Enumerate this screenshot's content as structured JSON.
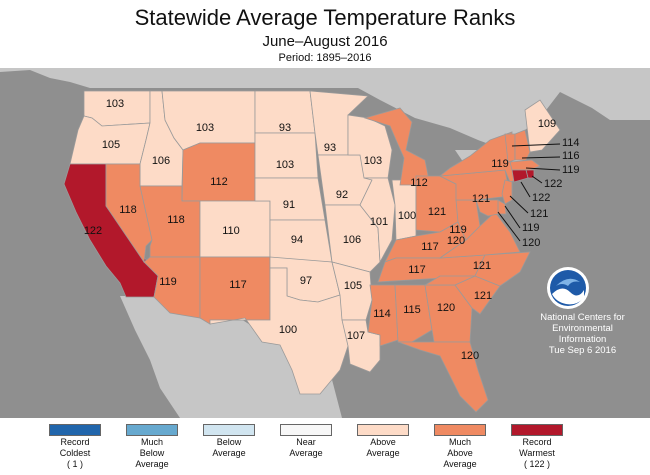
{
  "header": {
    "title": "Statewide Average Temperature Ranks",
    "subtitle": "June–August 2016",
    "period": "Period: 1895–2016"
  },
  "credit": {
    "line1": "National Centers for",
    "line2": "Environmental",
    "line3": "Information",
    "line4": "Tue Sep  6 2016"
  },
  "colors": {
    "ocean": "#8f8f8f",
    "land_outside": "#c6c6c6",
    "record_coldest": "#2166ac",
    "much_below": "#67a9cf",
    "below": "#d1e5f0",
    "near": "#f7f7f7",
    "above": "#fddbc7",
    "much_above": "#ef8a62",
    "record_warmest": "#b2182b"
  },
  "legend": [
    {
      "lines": [
        "Record",
        "Coldest",
        "( 1 )"
      ],
      "color": "#2166ac"
    },
    {
      "lines": [
        "Much",
        "Below",
        "Average"
      ],
      "color": "#67a9cf"
    },
    {
      "lines": [
        "Below",
        "Average",
        ""
      ],
      "color": "#d1e5f0"
    },
    {
      "lines": [
        "Near",
        "Average",
        ""
      ],
      "color": "#f7f7f7"
    },
    {
      "lines": [
        "Above",
        "Average",
        ""
      ],
      "color": "#fddbc7"
    },
    {
      "lines": [
        "Much",
        "Above",
        "Average"
      ],
      "color": "#ef8a62"
    },
    {
      "lines": [
        "Record",
        "Warmest",
        "( 122 )"
      ],
      "color": "#b2182b"
    }
  ],
  "states": [
    {
      "id": "WA",
      "rank": "103",
      "category": "above"
    },
    {
      "id": "OR",
      "rank": "105",
      "category": "above"
    },
    {
      "id": "CA",
      "rank": "122",
      "category": "record_warmest"
    },
    {
      "id": "ID",
      "rank": "106",
      "category": "above"
    },
    {
      "id": "NV",
      "rank": "118",
      "category": "much_above"
    },
    {
      "id": "MT",
      "rank": "103",
      "category": "above"
    },
    {
      "id": "WY",
      "rank": "112",
      "category": "much_above"
    },
    {
      "id": "UT",
      "rank": "118",
      "category": "much_above"
    },
    {
      "id": "AZ",
      "rank": "119",
      "category": "much_above"
    },
    {
      "id": "CO",
      "rank": "110",
      "category": "above"
    },
    {
      "id": "NM",
      "rank": "117",
      "category": "much_above"
    },
    {
      "id": "ND",
      "rank": "93",
      "category": "above"
    },
    {
      "id": "SD",
      "rank": "103",
      "category": "above"
    },
    {
      "id": "NE",
      "rank": "91",
      "category": "above"
    },
    {
      "id": "KS",
      "rank": "94",
      "category": "above"
    },
    {
      "id": "OK",
      "rank": "97",
      "category": "above"
    },
    {
      "id": "TX",
      "rank": "100",
      "category": "above"
    },
    {
      "id": "MN",
      "rank": "93",
      "category": "above"
    },
    {
      "id": "IA",
      "rank": "92",
      "category": "above"
    },
    {
      "id": "MO",
      "rank": "106",
      "category": "above"
    },
    {
      "id": "AR",
      "rank": "105",
      "category": "above"
    },
    {
      "id": "LA",
      "rank": "107",
      "category": "above"
    },
    {
      "id": "WI",
      "rank": "103",
      "category": "above"
    },
    {
      "id": "IL",
      "rank": "101",
      "category": "above"
    },
    {
      "id": "IN",
      "rank": "100",
      "category": "above"
    },
    {
      "id": "MI",
      "rank": "112",
      "category": "much_above"
    },
    {
      "id": "OH",
      "rank": "121",
      "category": "much_above"
    },
    {
      "id": "KY",
      "rank": "117",
      "category": "much_above"
    },
    {
      "id": "TN",
      "rank": "117",
      "category": "much_above"
    },
    {
      "id": "MS",
      "rank": "114",
      "category": "much_above"
    },
    {
      "id": "AL",
      "rank": "115",
      "category": "much_above"
    },
    {
      "id": "GA",
      "rank": "120",
      "category": "much_above"
    },
    {
      "id": "FL",
      "rank": "120",
      "category": "much_above"
    },
    {
      "id": "SC",
      "rank": "121",
      "category": "much_above"
    },
    {
      "id": "NC",
      "rank": "121",
      "category": "much_above"
    },
    {
      "id": "VA",
      "rank": "120",
      "category": "much_above"
    },
    {
      "id": "WV",
      "rank": "119",
      "category": "much_above"
    },
    {
      "id": "PA",
      "rank": "121",
      "category": "much_above"
    },
    {
      "id": "NY",
      "rank": "119",
      "category": "much_above"
    },
    {
      "id": "ME",
      "rank": "109",
      "category": "above"
    },
    {
      "id": "VT",
      "rank": "114",
      "category": "much_above"
    },
    {
      "id": "NH",
      "rank": "116",
      "category": "much_above"
    },
    {
      "id": "MA",
      "rank": "119",
      "category": "much_above"
    },
    {
      "id": "RI",
      "rank": "122",
      "category": "record_warmest"
    },
    {
      "id": "CT",
      "rank": "122",
      "category": "record_warmest"
    },
    {
      "id": "NJ",
      "rank": "121",
      "category": "much_above"
    },
    {
      "id": "DE",
      "rank": "119",
      "category": "much_above"
    },
    {
      "id": "MD",
      "rank": "120",
      "category": "much_above"
    }
  ]
}
